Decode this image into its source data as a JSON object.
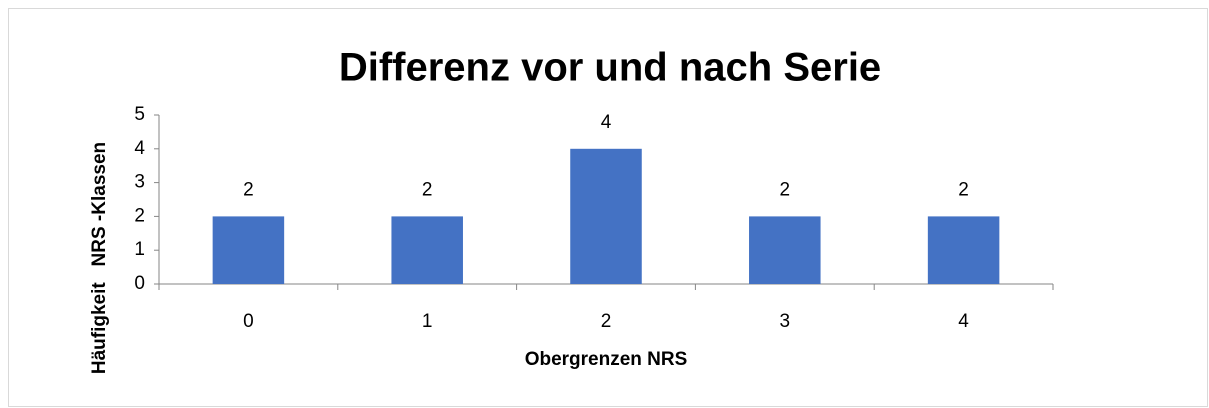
{
  "chart_data": {
    "type": "bar",
    "title": "Differenz vor und nach Serie",
    "x_label": "Obergrenzen NRS",
    "y_label": "Häufigkeit   NRS -Klassen",
    "categories": [
      "0",
      "1",
      "2",
      "3",
      "4"
    ],
    "values": [
      2,
      2,
      4,
      2,
      2
    ],
    "color": "#4472c4",
    "ylim": [
      0,
      5
    ],
    "yticks": [
      0,
      1,
      2,
      3,
      4,
      5
    ],
    "grid": false
  }
}
